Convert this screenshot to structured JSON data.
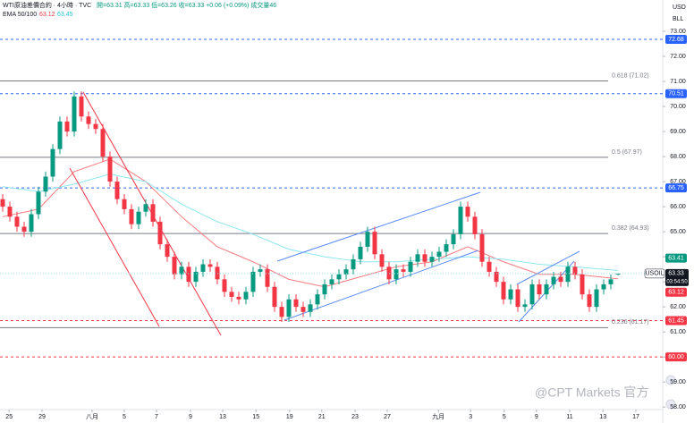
{
  "chart_data": {
    "type": "candlestick",
    "title": "WTI原油差價合約 · 4小時 · TVC",
    "subtitle": "開=63.31 高=63.33 低=63.26 收=63.33 +0.06 (+0.09%) 成交量46",
    "indicator_label": "EMA 50/100",
    "indicator_values": [
      63.12,
      63.45
    ],
    "axis_unit": "USD",
    "axis_unit2": "BLL",
    "watermark": "@CPT Markets 官方",
    "up_color": "#089981",
    "down_color": "#f23645",
    "open": [
      66.3,
      66.0,
      65.6,
      65.2,
      65.0,
      65.7,
      66.6,
      67.2,
      68.3,
      69.4,
      69.0,
      70.4,
      69.6,
      69.3,
      69.1,
      68.0,
      67.0,
      66.3,
      65.9,
      65.3,
      65.8,
      66.1,
      65.4,
      64.5,
      64.0,
      63.3,
      63.6,
      63.0,
      63.4,
      63.7,
      63.6,
      63.1,
      62.6,
      62.4,
      62.3,
      62.6,
      63.4,
      63.5,
      62.8,
      62.0,
      61.6,
      62.3,
      62.0,
      61.8,
      62.1,
      62.5,
      62.9,
      63.1,
      63.3,
      63.5,
      63.9,
      64.4,
      65.0,
      64.1,
      63.6,
      63.1,
      63.5,
      63.4,
      63.8,
      64.1,
      63.8,
      64.0,
      64.2,
      64.5,
      64.9,
      66.0,
      65.6,
      64.9,
      63.8,
      63.4,
      63.0,
      62.3,
      62.7,
      62.0,
      62.1,
      62.9,
      62.5,
      62.9,
      63.2,
      63.0,
      63.6,
      63.3,
      62.5,
      62.0,
      62.7,
      62.9,
      63.31
    ],
    "high": [
      66.5,
      66.2,
      65.8,
      65.4,
      65.9,
      66.8,
      67.4,
      68.5,
      69.6,
      69.6,
      70.6,
      70.6,
      69.8,
      69.5,
      69.3,
      68.2,
      67.2,
      66.5,
      66.1,
      66.0,
      66.3,
      66.3,
      65.6,
      64.7,
      64.2,
      63.8,
      63.8,
      63.6,
      63.9,
      63.9,
      63.8,
      63.3,
      62.8,
      62.6,
      62.8,
      63.6,
      63.7,
      63.7,
      63.0,
      62.2,
      62.5,
      62.5,
      62.2,
      62.3,
      62.7,
      63.1,
      63.3,
      63.5,
      63.7,
      64.1,
      64.6,
      65.2,
      65.2,
      64.3,
      63.8,
      63.7,
      63.7,
      64.0,
      64.3,
      64.3,
      64.2,
      64.4,
      64.7,
      65.1,
      66.2,
      66.2,
      65.8,
      65.1,
      64.0,
      63.6,
      63.2,
      62.9,
      62.9,
      62.3,
      63.1,
      63.1,
      63.1,
      63.4,
      63.4,
      63.8,
      63.8,
      63.5,
      62.7,
      62.9,
      63.1,
      63.3,
      63.33
    ],
    "low": [
      65.8,
      65.4,
      65.0,
      64.8,
      64.8,
      65.5,
      66.4,
      67.0,
      68.1,
      68.8,
      68.8,
      69.4,
      69.1,
      68.9,
      67.8,
      66.8,
      66.1,
      65.7,
      65.1,
      65.1,
      65.6,
      65.2,
      64.3,
      63.8,
      63.1,
      63.1,
      62.8,
      62.8,
      63.2,
      63.4,
      62.9,
      62.4,
      62.2,
      62.1,
      62.1,
      62.4,
      63.2,
      62.6,
      61.8,
      61.4,
      61.4,
      61.8,
      61.6,
      61.6,
      61.9,
      62.3,
      62.7,
      62.9,
      63.1,
      63.3,
      63.7,
      64.2,
      63.9,
      63.4,
      62.9,
      62.9,
      63.2,
      63.2,
      63.6,
      63.6,
      63.6,
      63.8,
      64.0,
      64.3,
      64.7,
      65.4,
      64.7,
      63.6,
      63.2,
      62.8,
      62.1,
      62.1,
      61.8,
      61.8,
      61.9,
      62.3,
      62.3,
      62.7,
      62.8,
      62.8,
      63.1,
      62.3,
      61.8,
      61.8,
      62.5,
      62.7,
      63.26
    ],
    "close": [
      66.0,
      65.6,
      65.2,
      65.0,
      65.7,
      66.6,
      67.2,
      68.3,
      69.4,
      69.0,
      70.4,
      69.6,
      69.3,
      69.1,
      68.0,
      67.0,
      66.3,
      65.9,
      65.3,
      65.8,
      66.1,
      65.4,
      64.5,
      64.0,
      63.3,
      63.6,
      63.0,
      63.4,
      63.7,
      63.6,
      63.1,
      62.6,
      62.4,
      62.3,
      62.6,
      63.4,
      63.5,
      62.8,
      62.0,
      61.6,
      62.3,
      62.0,
      61.8,
      62.1,
      62.5,
      62.9,
      63.1,
      63.3,
      63.5,
      63.9,
      64.4,
      65.0,
      64.1,
      63.6,
      63.1,
      63.5,
      63.4,
      63.8,
      64.1,
      63.8,
      64.0,
      64.2,
      64.5,
      64.9,
      66.0,
      65.6,
      64.9,
      63.8,
      63.4,
      63.0,
      62.3,
      62.7,
      62.0,
      62.1,
      62.9,
      62.5,
      62.9,
      63.2,
      63.0,
      63.6,
      63.3,
      62.5,
      62.0,
      62.7,
      62.9,
      63.1,
      63.33
    ],
    "series": [
      {
        "name": "EMA 50",
        "color": "#f77c80",
        "x": [
          0,
          5,
          10,
          15,
          20,
          25,
          30,
          35,
          40,
          45,
          50,
          55,
          60,
          65,
          70,
          75,
          80,
          86
        ],
        "values": [
          65.6,
          65.9,
          67.4,
          67.9,
          67.0,
          65.6,
          64.4,
          63.8,
          63.1,
          62.8,
          63.2,
          63.6,
          63.8,
          64.4,
          63.8,
          63.3,
          63.3,
          63.12
        ]
      },
      {
        "name": "EMA 100",
        "color": "#8ee6f0",
        "x": [
          0,
          5,
          10,
          15,
          20,
          25,
          30,
          35,
          40,
          45,
          50,
          55,
          60,
          65,
          70,
          75,
          80,
          86
        ],
        "values": [
          66.8,
          66.6,
          66.9,
          67.3,
          67.0,
          66.1,
          65.4,
          64.9,
          64.3,
          64.0,
          63.8,
          63.8,
          63.9,
          64.0,
          63.9,
          63.7,
          63.6,
          63.45
        ]
      }
    ],
    "xlim": [
      -0.375,
      92.25
    ],
    "xticks": [
      {
        "value": 0.9,
        "label": "25"
      },
      {
        "value": 5.5,
        "label": "29"
      },
      {
        "value": 12.5,
        "label": "八月"
      },
      {
        "value": 17,
        "label": "5"
      },
      {
        "value": 21.5,
        "label": "7"
      },
      {
        "value": 26.25,
        "label": "9"
      },
      {
        "value": 30.75,
        "label": "13"
      },
      {
        "value": 35.4,
        "label": "15"
      },
      {
        "value": 40.1,
        "label": "19"
      },
      {
        "value": 44.6,
        "label": "21"
      },
      {
        "value": 49.25,
        "label": "23"
      },
      {
        "value": 53.75,
        "label": "27"
      },
      {
        "value": 60.9,
        "label": "九月"
      },
      {
        "value": 65.4,
        "label": "3"
      },
      {
        "value": 70.1,
        "label": "5"
      },
      {
        "value": 74.6,
        "label": "9"
      },
      {
        "value": 79.25,
        "label": "11"
      },
      {
        "value": 83.9,
        "label": "13"
      },
      {
        "value": 88.5,
        "label": "17"
      }
    ],
    "ylim": [
      57.9,
      74.25
    ],
    "yticks": [
      {
        "value": 58,
        "label": "58.00"
      },
      {
        "value": 59,
        "label": "59.00"
      },
      {
        "value": 60,
        "label": "60.00"
      },
      {
        "value": 61,
        "label": "61.00"
      },
      {
        "value": 62,
        "label": "62.00"
      },
      {
        "value": 63,
        "label": "63.00"
      },
      {
        "value": 64,
        "label": "64.00"
      },
      {
        "value": 65,
        "label": "65.00"
      },
      {
        "value": 66,
        "label": "66.00"
      },
      {
        "value": 67,
        "label": "67.00"
      },
      {
        "value": 68,
        "label": "68.00"
      },
      {
        "value": 69,
        "label": "69.00"
      },
      {
        "value": 70,
        "label": "70.00"
      },
      {
        "value": 71,
        "label": "71.00"
      },
      {
        "value": 72,
        "label": "72.00"
      },
      {
        "value": 73,
        "label": "73.00"
      }
    ],
    "fib_levels": [
      {
        "value": 71.02,
        "label": "0.618 (71.02)"
      },
      {
        "value": 67.97,
        "label": "0.5 (67.97)"
      },
      {
        "value": 64.93,
        "label": "0.382 (64.93)"
      },
      {
        "value": 61.17,
        "label": "0.236 (61.17)"
      }
    ],
    "lines": [
      {
        "value": 72.68,
        "label": "72.68",
        "color": "#2962ff"
      },
      {
        "value": 70.51,
        "label": "70.51",
        "color": "#2962ff"
      },
      {
        "value": 66.75,
        "label": "66.75",
        "color": "#2962ff"
      },
      {
        "value": 61.45,
        "label": "61.45",
        "color": "#f23645"
      },
      {
        "value": 60.0,
        "label": "60.00",
        "color": "#f23645"
      }
    ],
    "price_tags": [
      {
        "value": 63.41,
        "label": "63.41",
        "color": "#089981"
      },
      {
        "value": 63.33,
        "label": "63.33",
        "name": "USOIL",
        "countdown": "03:54:50",
        "color": "#131722"
      },
      {
        "value": 63.12,
        "label": "63.12",
        "color": "#f23645"
      }
    ]
  }
}
